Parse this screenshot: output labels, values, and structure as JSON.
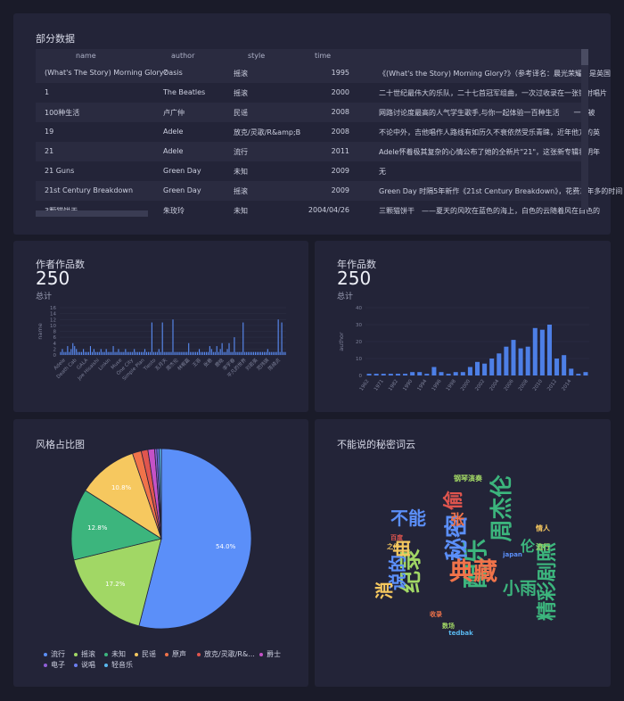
{
  "panels": {
    "table_title": "部分数据",
    "author_title": "作者作品数",
    "author_total": "250",
    "author_sub": "总计",
    "year_title": "年作品数",
    "year_total": "250",
    "year_sub": "总计",
    "pie_title": "风格占比图",
    "cloud_title": "不能说的秘密词云"
  },
  "table": {
    "columns": [
      "name",
      "author",
      "style",
      "time",
      ""
    ],
    "rows": [
      [
        "(What's The Story) Morning Glory?",
        "Oasis",
        "摇滚",
        "1995",
        "《(What's the Story) Morning Glory?》（参考译名：晨光荣耀）是英国"
      ],
      [
        "1",
        "The Beatles",
        "摇滚",
        "2000",
        "二十世纪最伟大的乐队，二十七首冠军组曲，一次过收录在一张镭射唱片"
      ],
      [
        "100种生活",
        "卢广仲",
        "民谣",
        "2008",
        "网路讨论度最高的人气学生歌手,与你一起体验一百种生活　　一个被"
      ],
      [
        "19",
        "Adele",
        "放克/灵歌/R&amp;B",
        "2008",
        "不论中外，吉他唱作人路线有如历久不衰依然受乐青睐，近年他方的英"
      ],
      [
        "21",
        "Adele",
        "流行",
        "2011",
        "Adele怀着极其复杂的心情公布了她的全新片\"21\"，这张新专辑将明年"
      ],
      [
        "21 Guns",
        "Green Day",
        "未知",
        "2009",
        "无"
      ],
      [
        "21st Century Breakdown",
        "Green Day",
        "摇滚",
        "2009",
        "Green Day 时隔5年新作《21st Century Breakdown》，花费三年多的时间"
      ],
      [
        "3颗猫饼干",
        "朱玫玲",
        "未知",
        "2004/04/26",
        "三颗猫饼干　——夏天的风吹在蓝色的海上，白色的云随着风在白色的"
      ]
    ]
  },
  "chart_data": [
    {
      "type": "bar",
      "title": "作者作品数",
      "ylabel": "name",
      "ylim": [
        0,
        16
      ],
      "yticks": [
        0,
        2,
        4,
        6,
        8,
        10,
        12,
        14,
        16
      ],
      "xticklabels": [
        "Adele",
        "Death Cab",
        "GALA",
        "Joe Hisaishi",
        "Linkin",
        "Muse",
        "One City",
        "Simple Plan",
        "Tiesto",
        "五月天",
        "周杰伦",
        "林宥嘉",
        "王菲",
        "张悬",
        "鹿晗",
        "李宇春",
        "平凡的世界",
        "刘若英",
        "范玮琪",
        "陈绮贞"
      ],
      "values": [
        1,
        2,
        1,
        1,
        3,
        1,
        2,
        4,
        3,
        2,
        1,
        1,
        1,
        2,
        1,
        1,
        1,
        3,
        1,
        2,
        1,
        1,
        1,
        2,
        1,
        1,
        2,
        1,
        1,
        1,
        3,
        1,
        1,
        2,
        1,
        1,
        1,
        2,
        1,
        1,
        1,
        1,
        2,
        1,
        1,
        1,
        1,
        1,
        2,
        1,
        1,
        1,
        11,
        1,
        1,
        1,
        2,
        1,
        11,
        1,
        1,
        1,
        1,
        1,
        12,
        1,
        1,
        1,
        1,
        1,
        1,
        1,
        1,
        4,
        1,
        1,
        1,
        1,
        1,
        2,
        1,
        1,
        1,
        1,
        1,
        3,
        2,
        1,
        1,
        3,
        1,
        2,
        4,
        1,
        1,
        2,
        4,
        1,
        1,
        6,
        1,
        1,
        1,
        1,
        11,
        1,
        1,
        1,
        1,
        1,
        1,
        1,
        1,
        1,
        1,
        1,
        1,
        1,
        2,
        1,
        1,
        1,
        1,
        1,
        12,
        1,
        11,
        1,
        1
      ]
    },
    {
      "type": "bar",
      "title": "年作品数",
      "ylabel": "author",
      "ylim": [
        0,
        40
      ],
      "yticks": [
        0,
        10,
        20,
        30,
        40
      ],
      "categories": [
        "1962",
        "1968",
        "1971",
        "1976",
        "1982",
        "1988",
        "1990",
        "1992",
        "1994",
        "1995",
        "1996",
        "1997",
        "1998",
        "1999",
        "2000",
        "2001",
        "2002",
        "2003",
        "2004",
        "2005",
        "2006",
        "2007",
        "2008",
        "2009",
        "2010",
        "2011",
        "2012",
        "2013",
        "2014",
        "2015",
        "2016"
      ],
      "xticklabels": [
        "1962",
        "1971",
        "1982",
        "1990",
        "1994",
        "1996",
        "1998",
        "2000",
        "2002",
        "2004",
        "2006",
        "2008",
        "2010",
        "2012",
        "2014"
      ],
      "values": [
        1,
        1,
        1,
        1,
        1,
        1,
        2,
        2,
        1,
        5,
        2,
        1,
        2,
        2,
        5,
        8,
        7,
        10,
        13,
        17,
        21,
        16,
        17,
        28,
        27,
        30,
        10,
        12,
        4,
        1,
        2
      ]
    },
    {
      "type": "pie",
      "title": "风格占比图",
      "labels": [
        "流行",
        "摇滚",
        "未知",
        "民谣",
        "原声",
        "放克/灵歌/R&...",
        "爵士",
        "电子",
        "说唱",
        "轻音乐"
      ],
      "values": [
        54.0,
        17.2,
        12.8,
        10.8,
        1.6,
        1.2,
        1.2,
        0.4,
        0.4,
        0.4
      ],
      "value_labels": [
        "54.0%",
        "17.2%",
        "12.8%",
        "10.8%",
        "",
        "",
        "",
        "",
        "",
        ""
      ],
      "colors": [
        "#5b8ff9",
        "#a1d765",
        "#3cb57d",
        "#f6c85f",
        "#f0734a",
        "#e0554e",
        "#c552c7",
        "#8f5fd8",
        "#6c7ff0",
        "#59b8ef"
      ]
    }
  ],
  "wordcloud": {
    "words": [
      {
        "text": "周杰伦",
        "color": "#3cb57d"
      },
      {
        "text": "配乐",
        "color": "#3cb57d"
      },
      {
        "text": "秘密",
        "color": "#5b8ff9"
      },
      {
        "text": "纪录",
        "color": "#a1d765"
      },
      {
        "text": "偷",
        "color": "#e0554e"
      },
      {
        "text": "典藏",
        "color": "#f0734a"
      },
      {
        "text": "不能",
        "color": "#5b8ff9"
      },
      {
        "text": "说的",
        "color": "#5b8ff9"
      },
      {
        "text": "精彩剧照",
        "color": "#3cb57d"
      },
      {
        "text": "小雨",
        "color": "#3cb57d"
      },
      {
        "text": "伦",
        "color": "#3cb57d"
      },
      {
        "text": "消",
        "color": "#f6c85f"
      },
      {
        "text": "曲",
        "color": "#f6c85f"
      },
      {
        "text": "张",
        "color": "#f0734a"
      },
      {
        "text": "钢琴演奏",
        "color": "#a1d765"
      },
      {
        "text": "japan",
        "color": "#5b8ff9"
      },
      {
        "text": "tedbak",
        "color": "#59b8ef"
      },
      {
        "text": "流行",
        "color": "#a1d765"
      },
      {
        "text": "情人",
        "color": "#f6c85f"
      },
      {
        "text": "收录",
        "color": "#f0734a"
      },
      {
        "text": "数场",
        "color": "#a1d765"
      },
      {
        "text": "百度",
        "color": "#e0554e"
      },
      {
        "text": "之作",
        "color": "#f6c85f"
      }
    ]
  }
}
